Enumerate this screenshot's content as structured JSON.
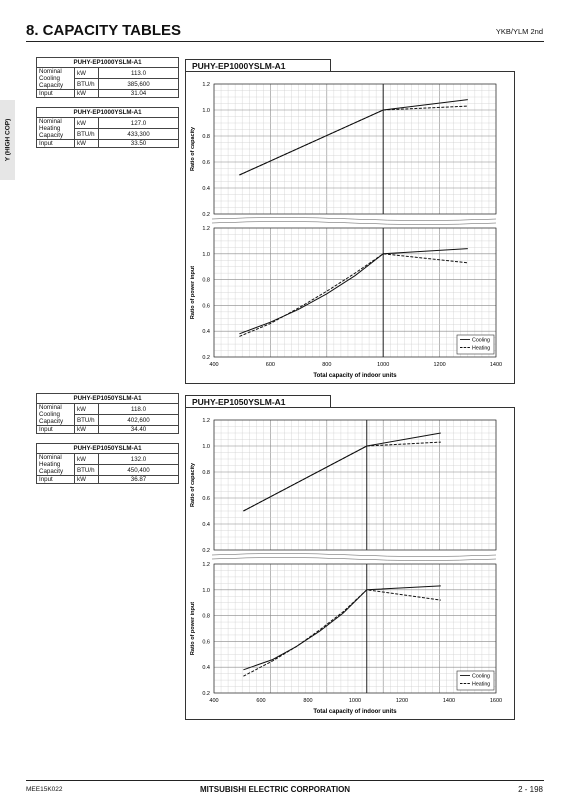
{
  "header": {
    "title": "8. CAPACITY TABLES",
    "series": "YKB/YLM 2nd",
    "side_tab": "Y (HIGH COP)"
  },
  "sections": [
    {
      "model": "PUHY-EP1000YSLM-A1",
      "cooling_table": {
        "model": "PUHY-EP1000YSLM-A1",
        "label_nominal": "Nominal Cooling Capacity",
        "kw_unit": "kW",
        "kw_value": "113.0",
        "btu_unit": "BTU/h",
        "btu_value": "385,600",
        "input_label": "Input",
        "input_unit": "kW",
        "input_value": "31.04"
      },
      "heating_table": {
        "model": "PUHY-EP1000YSLM-A1",
        "label_nominal": "Nominal Heating Capacity",
        "kw_unit": "kW",
        "kw_value": "127.0",
        "btu_unit": "BTU/h",
        "btu_value": "433,300",
        "input_label": "Input",
        "input_unit": "kW",
        "input_value": "33.50"
      }
    },
    {
      "model": "PUHY-EP1050YSLM-A1",
      "cooling_table": {
        "model": "PUHY-EP1050YSLM-A1",
        "label_nominal": "Nominal Cooling Capacity",
        "kw_unit": "kW",
        "kw_value": "118.0",
        "btu_unit": "BTU/h",
        "btu_value": "402,600",
        "input_label": "Input",
        "input_unit": "kW",
        "input_value": "34.40"
      },
      "heating_table": {
        "model": "PUHY-EP1050YSLM-A1",
        "label_nominal": "Nominal Heating Capacity",
        "kw_unit": "kW",
        "kw_value": "132.0",
        "btu_unit": "BTU/h",
        "btu_value": "450,400",
        "input_label": "Input",
        "input_unit": "kW",
        "input_value": "36.87"
      }
    }
  ],
  "chart_data": [
    {
      "type": "line",
      "title": "PUHY-EP1000YSLM-A1",
      "xlabel": "Total capacity of indoor units",
      "xlim": [
        400,
        1400
      ],
      "xticks": [
        400,
        600,
        800,
        1000,
        1200,
        1400
      ],
      "nominal_x": 1000,
      "legend": {
        "position": "bottom-right",
        "entries": [
          "Cooling",
          "Heating"
        ]
      },
      "capacity": {
        "ylabel": "Ratio of capacity",
        "ylim": [
          0.2,
          1.2
        ],
        "yticks": [
          "0.2",
          "0.4",
          "0.6",
          "0.8",
          "1.0",
          "1.2"
        ],
        "series": [
          {
            "name": "Cooling",
            "style": "solid",
            "x": [
              490,
              1000,
              1300
            ],
            "y": [
              0.5,
              1.0,
              1.08
            ]
          },
          {
            "name": "Heating",
            "style": "dashed",
            "x": [
              490,
              1000,
              1300
            ],
            "y": [
              0.5,
              1.0,
              1.03
            ]
          }
        ]
      },
      "power": {
        "ylabel": "Ratio of power input",
        "ylim": [
          0.2,
          1.2
        ],
        "yticks": [
          "0.2",
          "0.4",
          "0.6",
          "0.8",
          "1.0",
          "1.2"
        ],
        "series": [
          {
            "name": "Cooling",
            "style": "solid",
            "x": [
              490,
              600,
              700,
              800,
              900,
              1000,
              1300
            ],
            "y": [
              0.38,
              0.47,
              0.57,
              0.69,
              0.83,
              1.0,
              1.04
            ]
          },
          {
            "name": "Heating",
            "style": "dashed",
            "x": [
              490,
              600,
              700,
              800,
              900,
              1000,
              1300
            ],
            "y": [
              0.36,
              0.46,
              0.58,
              0.71,
              0.85,
              1.0,
              0.93
            ]
          }
        ]
      }
    },
    {
      "type": "line",
      "title": "PUHY-EP1050YSLM-A1",
      "xlabel": "Total capacity of indoor units",
      "xlim": [
        400,
        1600
      ],
      "xticks": [
        400,
        600,
        800,
        1000,
        1200,
        1400,
        1600
      ],
      "nominal_x": 1050,
      "legend": {
        "position": "bottom-right",
        "entries": [
          "Cooling",
          "Heating"
        ]
      },
      "capacity": {
        "ylabel": "Ratio of capacity",
        "ylim": [
          0.2,
          1.2
        ],
        "yticks": [
          "0.2",
          "0.4",
          "0.6",
          "0.8",
          "1.0",
          "1.2"
        ],
        "series": [
          {
            "name": "Cooling",
            "style": "solid",
            "x": [
              525,
              1050,
              1365
            ],
            "y": [
              0.5,
              1.0,
              1.1
            ]
          },
          {
            "name": "Heating",
            "style": "dashed",
            "x": [
              525,
              1050,
              1365
            ],
            "y": [
              0.5,
              1.0,
              1.03
            ]
          }
        ]
      },
      "power": {
        "ylabel": "Ratio of power input",
        "ylim": [
          0.2,
          1.2
        ],
        "yticks": [
          "0.2",
          "0.4",
          "0.6",
          "0.8",
          "1.0",
          "1.2"
        ],
        "series": [
          {
            "name": "Cooling",
            "style": "solid",
            "x": [
              525,
              650,
              750,
              850,
              950,
              1050,
              1365
            ],
            "y": [
              0.38,
              0.46,
              0.56,
              0.68,
              0.82,
              1.0,
              1.03
            ]
          },
          {
            "name": "Heating",
            "style": "dashed",
            "x": [
              525,
              650,
              750,
              850,
              950,
              1050,
              1365
            ],
            "y": [
              0.33,
              0.45,
              0.56,
              0.69,
              0.83,
              1.0,
              0.92
            ]
          }
        ]
      }
    }
  ],
  "footer": {
    "doc_code": "MEE15K022",
    "company": "MITSUBISHI ELECTRIC CORPORATION",
    "page": "2 - 198"
  }
}
